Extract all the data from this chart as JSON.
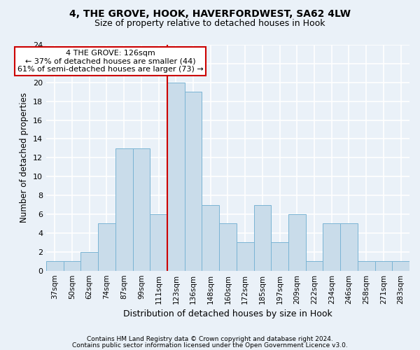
{
  "title1": "4, THE GROVE, HOOK, HAVERFORDWEST, SA62 4LW",
  "title2": "Size of property relative to detached houses in Hook",
  "xlabel": "Distribution of detached houses by size in Hook",
  "ylabel": "Number of detached properties",
  "categories": [
    "37sqm",
    "50sqm",
    "62sqm",
    "74sqm",
    "87sqm",
    "99sqm",
    "111sqm",
    "123sqm",
    "136sqm",
    "148sqm",
    "160sqm",
    "172sqm",
    "185sqm",
    "197sqm",
    "209sqm",
    "222sqm",
    "234sqm",
    "246sqm",
    "258sqm",
    "271sqm",
    "283sqm"
  ],
  "values": [
    1,
    1,
    2,
    5,
    13,
    13,
    6,
    20,
    19,
    7,
    5,
    3,
    7,
    3,
    6,
    1,
    5,
    5,
    1,
    1,
    1
  ],
  "bar_color": "#c9dcea",
  "bar_edge_color": "#7ab4d4",
  "red_line_index": 7,
  "annotation_text1": "4 THE GROVE: 126sqm",
  "annotation_text2": "← 37% of detached houses are smaller (44)",
  "annotation_text3": "61% of semi-detached houses are larger (73) →",
  "annotation_box_facecolor": "#ffffff",
  "annotation_box_edgecolor": "#cc0000",
  "ylim": [
    0,
    24
  ],
  "yticks": [
    0,
    2,
    4,
    6,
    8,
    10,
    12,
    14,
    16,
    18,
    20,
    22,
    24
  ],
  "footer1": "Contains HM Land Registry data © Crown copyright and database right 2024.",
  "footer2": "Contains public sector information licensed under the Open Government Licence v3.0.",
  "background_color": "#eaf1f8",
  "grid_color": "#ffffff",
  "title1_fontsize": 10,
  "title2_fontsize": 9,
  "ylabel_fontsize": 8.5,
  "xlabel_fontsize": 9,
  "tick_fontsize": 8,
  "xtick_fontsize": 7.5,
  "footer_fontsize": 6.5,
  "ann_fontsize": 8
}
